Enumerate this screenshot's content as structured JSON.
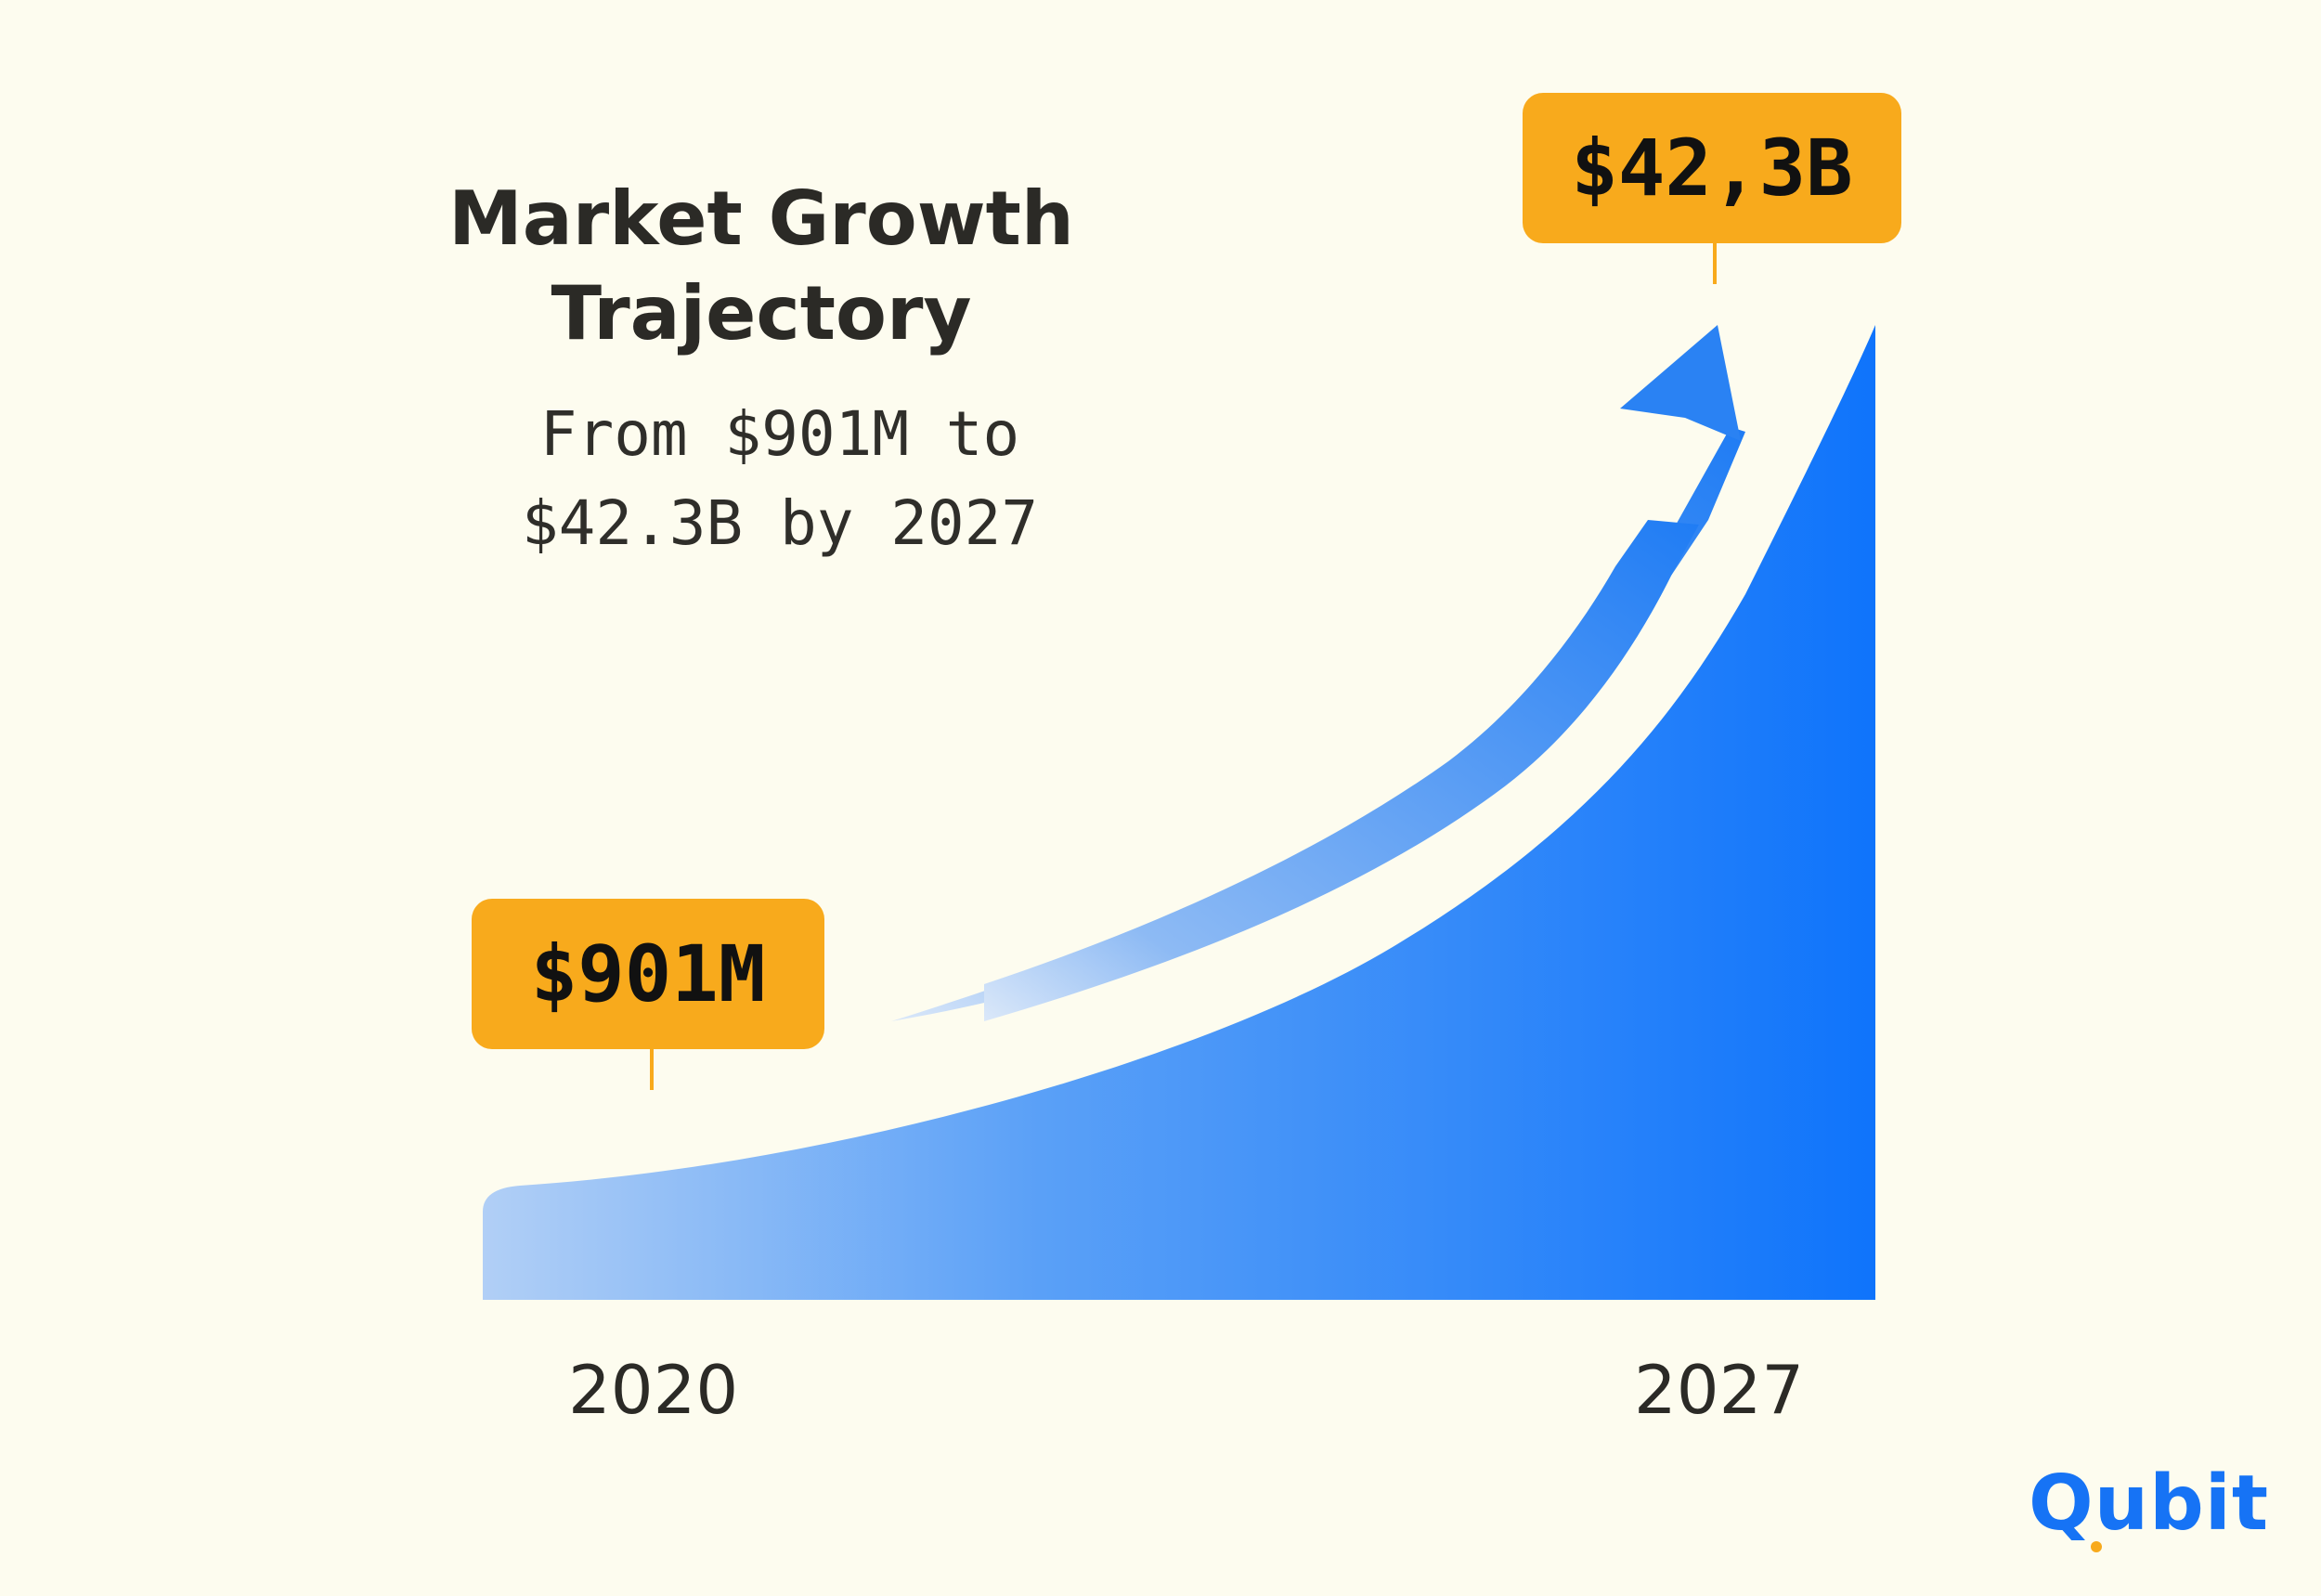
{
  "chart_data": {
    "type": "area",
    "title_lines": [
      "Market Growth",
      "Trajectory"
    ],
    "subtitle_lines": [
      "From $901M to",
      "$42.3B by 2027"
    ],
    "x": [
      "2020",
      "2027"
    ],
    "callouts": [
      {
        "x": "2020",
        "label": "$901M"
      },
      {
        "x": "2027",
        "label": "$42,3B"
      }
    ],
    "values_usd_billions": [
      0.901,
      42.3
    ],
    "gradient_colors": [
      "#b1cff6",
      "#0f74fb"
    ],
    "arrow_color": "#2a82f3",
    "callout_color": "#f8aa1c"
  },
  "logo": {
    "text": "Qubit",
    "color": "#1673f5"
  }
}
